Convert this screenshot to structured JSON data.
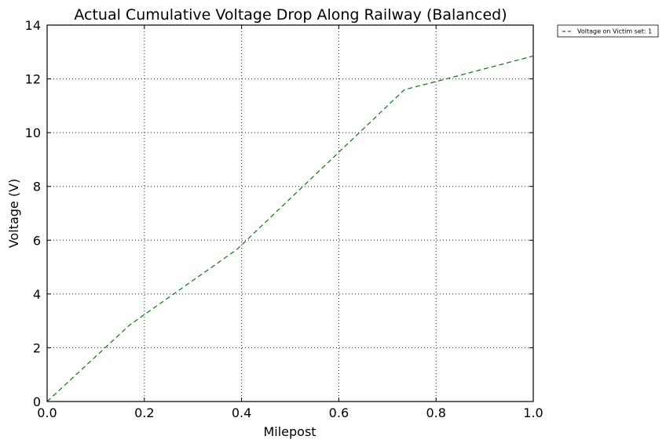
{
  "chart_data": {
    "type": "line",
    "title": "Actual Cumulative Voltage Drop Along Railway (Balanced)",
    "xlabel": "Milepost",
    "ylabel": "Voltage  (V)",
    "xlim": [
      0,
      1.0
    ],
    "ylim": [
      0,
      14
    ],
    "xticks": [
      "0.0",
      "0.2",
      "0.4",
      "0.6",
      "0.8",
      "1.0"
    ],
    "xtick_values": [
      0,
      0.2,
      0.4,
      0.6,
      0.8,
      1.0
    ],
    "yticks": [
      "0",
      "2",
      "4",
      "6",
      "8",
      "10",
      "12",
      "14"
    ],
    "ytick_values": [
      0,
      2,
      4,
      6,
      8,
      10,
      12,
      14
    ],
    "grid": true,
    "legend_position": "outside-top-right",
    "series": [
      {
        "name": "Voltage on Victim set: 1",
        "color": "#008000",
        "line_style": "dashed",
        "x": [
          0.0,
          0.17,
          0.39,
          0.735,
          0.8,
          1.0
        ],
        "y": [
          0.0,
          2.85,
          5.65,
          11.6,
          11.9,
          12.85
        ]
      }
    ]
  }
}
